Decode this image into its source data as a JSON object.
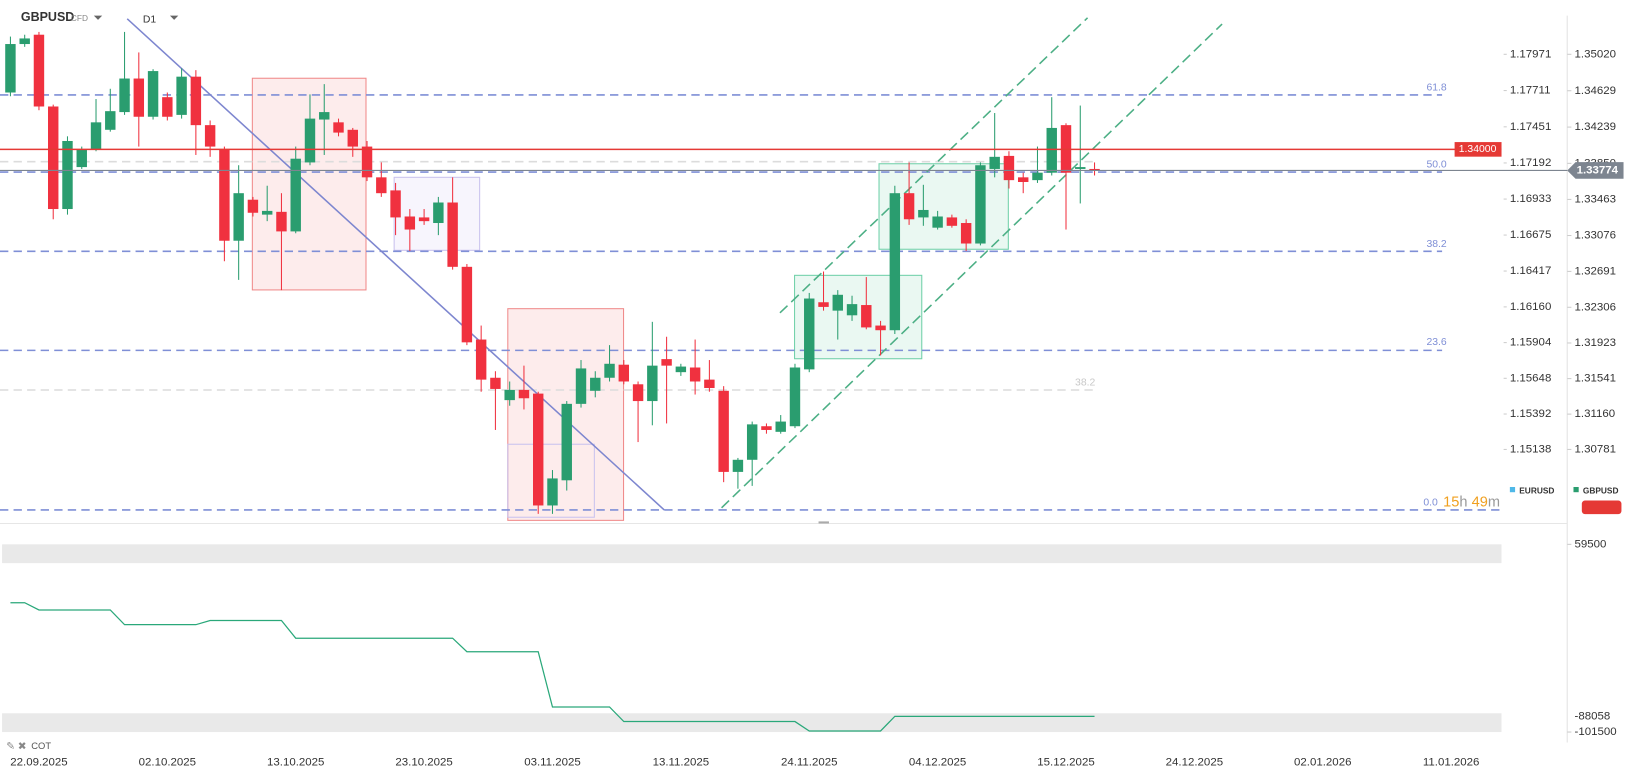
{
  "header": {
    "symbol": "GBPUSD",
    "badge": "CFD",
    "timeframe": "D1"
  },
  "chart_data": {
    "type": "candlestick",
    "categories": [
      null,
      null,
      "22.09.2025",
      null,
      null,
      null,
      null,
      null,
      null,
      null,
      null,
      "02.10.2025",
      null,
      null,
      null,
      null,
      null,
      null,
      null,
      null,
      "13.10.2025",
      null,
      null,
      null,
      null,
      null,
      null,
      null,
      null,
      "23.10.2025",
      null,
      null,
      null,
      null,
      null,
      null,
      null,
      null,
      "03.11.2025",
      null,
      null,
      null,
      null,
      null,
      null,
      null,
      null,
      "13.11.2025",
      null,
      null,
      null,
      null,
      null,
      null,
      null,
      null,
      "24.11.2025",
      null,
      null,
      null,
      null,
      null,
      null,
      null,
      null,
      "04.12.2025",
      null,
      null,
      null,
      null,
      null,
      null,
      null,
      null,
      "15.12.2025",
      null,
      null,
      null,
      null,
      null,
      null,
      null,
      null,
      "24.12.2025",
      null,
      null,
      null,
      null,
      null,
      null,
      null,
      null,
      "02.01.2026",
      null,
      null,
      null,
      null,
      null,
      null,
      null,
      null,
      "11.01.2026"
    ],
    "series": [
      {
        "name": "GBPUSD",
        "up_color": "#2a9d6f",
        "down_color": "#f0313f",
        "open": [
          1.3461,
          1.3513,
          1.3523,
          1.3446,
          1.3336,
          1.3381,
          1.34,
          1.3421,
          1.344,
          1.3476,
          1.3435,
          1.3456,
          1.3437,
          1.3478,
          1.3426,
          1.34,
          1.3302,
          1.3346,
          1.333,
          1.3333,
          1.3312,
          1.3386,
          1.3432,
          1.3429,
          1.3421,
          1.3403,
          1.337,
          1.3356,
          1.3328,
          1.3327,
          1.3321,
          1.3343,
          1.3274,
          1.3196,
          1.3155,
          1.3131,
          1.3142,
          1.3138,
          1.3018,
          1.3045,
          1.3127,
          1.3141,
          1.3155,
          1.3169,
          1.3148,
          1.313,
          1.3175,
          1.3161,
          1.3166,
          1.3153,
          1.3141,
          1.3054,
          1.3067,
          1.3103,
          1.3097,
          1.3103,
          1.3164,
          1.3236,
          1.3227,
          1.3222,
          1.3233,
          1.3211,
          1.3206,
          1.3353,
          1.3327,
          1.3316,
          1.3327,
          1.3321,
          1.3299,
          1.3379,
          1.3393,
          1.337,
          1.3367,
          1.3375,
          1.3426,
          1.3379,
          1.3379,
          null,
          null,
          null,
          null,
          null,
          null,
          null,
          null,
          null,
          null,
          null,
          null,
          null,
          null,
          null,
          null,
          null,
          null,
          null,
          null,
          null,
          null,
          null,
          null,
          null
        ],
        "high": [
          1.3521,
          1.3523,
          1.3526,
          1.3448,
          1.3414,
          1.3403,
          1.3454,
          1.3465,
          1.3526,
          1.3504,
          1.3486,
          1.3461,
          1.3487,
          1.3485,
          1.3431,
          1.3403,
          1.3383,
          1.3349,
          1.3361,
          1.3353,
          1.3403,
          1.3459,
          1.347,
          1.3433,
          1.3423,
          1.3409,
          1.3386,
          1.3364,
          1.3336,
          1.3336,
          1.3349,
          1.337,
          1.3277,
          1.3211,
          1.3162,
          1.3151,
          1.3168,
          1.314,
          1.3056,
          1.313,
          1.3174,
          1.3162,
          1.319,
          1.3174,
          1.3151,
          1.3215,
          1.3199,
          1.317,
          1.3196,
          1.3174,
          1.3146,
          1.3069,
          1.3108,
          1.3106,
          1.3115,
          1.317,
          1.3246,
          1.3269,
          1.3249,
          1.3243,
          1.3263,
          1.3216,
          1.3361,
          1.3386,
          1.3362,
          1.3334,
          1.333,
          1.3325,
          1.3386,
          1.3439,
          1.3398,
          1.3375,
          1.3403,
          1.3456,
          1.3428,
          1.3447,
          1.3386,
          null,
          null,
          null,
          null,
          null,
          null,
          null,
          null,
          null,
          null,
          null,
          null,
          null,
          null,
          null,
          null,
          null,
          null,
          null,
          null,
          null,
          null,
          null,
          null,
          null
        ],
        "low": [
          1.3457,
          1.351,
          1.3442,
          1.3325,
          1.333,
          1.3379,
          1.3398,
          1.3419,
          1.3437,
          1.3403,
          1.3432,
          1.3431,
          1.3433,
          1.3394,
          1.3392,
          1.328,
          1.326,
          1.3328,
          1.3323,
          1.3249,
          1.331,
          1.3383,
          1.3394,
          1.3414,
          1.3392,
          1.3366,
          1.3349,
          1.3308,
          1.3291,
          1.3319,
          1.3308,
          1.3271,
          1.319,
          1.314,
          1.3099,
          1.3125,
          1.3121,
          1.3009,
          1.3009,
          1.3034,
          1.3123,
          1.3134,
          1.3151,
          1.3148,
          1.3086,
          1.3104,
          1.3106,
          1.3157,
          1.3137,
          1.314,
          1.3043,
          1.3036,
          1.3039,
          1.3095,
          1.3095,
          1.3101,
          1.3161,
          1.3227,
          1.3196,
          1.3216,
          1.3207,
          1.3179,
          1.3202,
          1.3319,
          1.3318,
          1.3314,
          1.3316,
          1.3291,
          1.3297,
          1.337,
          1.3358,
          1.3353,
          1.3364,
          1.3372,
          1.3314,
          1.3342,
          1.3372,
          null,
          null,
          null,
          null,
          null,
          null,
          null,
          null,
          null,
          null,
          null,
          null,
          null,
          null,
          null,
          null,
          null,
          null,
          null,
          null,
          null,
          null,
          null,
          null,
          null
        ],
        "close": [
          1.3513,
          1.3519,
          1.3446,
          1.3336,
          1.3409,
          1.34,
          1.3429,
          1.3441,
          1.3476,
          1.3435,
          1.3484,
          1.3435,
          1.3478,
          1.3426,
          1.3403,
          1.3302,
          1.3353,
          1.3332,
          1.3334,
          1.3312,
          1.339,
          1.3433,
          1.344,
          1.3418,
          1.3403,
          1.337,
          1.3353,
          1.3327,
          1.3314,
          1.3323,
          1.3343,
          1.3274,
          1.3193,
          1.3153,
          1.3143,
          1.3142,
          1.3133,
          1.3018,
          1.3047,
          1.3127,
          1.3165,
          1.3155,
          1.317,
          1.3151,
          1.313,
          1.3168,
          1.3168,
          1.3167,
          1.3151,
          1.3144,
          1.3054,
          1.3067,
          1.3105,
          1.3099,
          1.3108,
          1.3166,
          1.324,
          1.3231,
          1.3244,
          1.3234,
          1.3209,
          1.3206,
          1.3353,
          1.3325,
          1.3335,
          1.3328,
          1.3318,
          1.3299,
          1.3383,
          1.3392,
          1.3367,
          1.3365,
          1.3375,
          1.3423,
          1.3375,
          1.3381,
          1.3377,
          null,
          null,
          null,
          null,
          null,
          null,
          null,
          null,
          null,
          null,
          null,
          null,
          null,
          null,
          null,
          null,
          null,
          null,
          null,
          null,
          null,
          null,
          null,
          null,
          null
        ]
      }
    ],
    "ylim": [
      1.30009,
      1.35602
    ],
    "yticks": [
      {
        "value": 1.3502,
        "label": "1.35020"
      },
      1.34629,
      1.34239,
      {
        "value": 1.3385,
        "label": "1.33850"
      },
      1.33463,
      1.33076,
      1.32691,
      1.32306,
      1.31923,
      1.31541,
      {
        "value": 1.3116,
        "label": "1.31160"
      },
      1.30781
    ],
    "y2lim": [
      1.14622,
      1.1836
    ],
    "y2ticks": [
      1.17971,
      1.17711,
      1.17451,
      1.17192,
      1.16933,
      1.16675,
      1.16417,
      {
        "value": 1.1616,
        "label": "1.16160"
      },
      1.15904,
      1.15648,
      1.15392,
      1.15138
    ],
    "legend": [
      {
        "name": "EURUSD",
        "color": "#4fb8e8"
      },
      {
        "name": "GBPUSD",
        "color": "#2a9d6f"
      }
    ],
    "price_lines": [
      {
        "value": 1.34,
        "label": "1.34000",
        "color": "#e53935"
      },
      {
        "value": 1.33774,
        "label": "1.33774",
        "color": "#7d8590"
      }
    ],
    "fib_labels": [
      "61.8",
      "50.0",
      "38.2",
      "23.6",
      "0.0",
      "38.2"
    ],
    "countdown": [
      "15",
      "h",
      "49",
      "m"
    ]
  },
  "indicator": {
    "type": "line",
    "name": "COT",
    "color": "#2aa87a",
    "values": [
      9400,
      9400,
      3200,
      3200,
      3200,
      3200,
      3200,
      3200,
      -9400,
      -9400,
      -9400,
      -9400,
      -9400,
      -9400,
      -5800,
      -5800,
      -5800,
      -5800,
      -5800,
      -5800,
      -21000,
      -21000,
      -21000,
      -21000,
      -21000,
      -21000,
      -21000,
      -21000,
      -21000,
      -21000,
      -21000,
      -21000,
      -32600,
      -32600,
      -32600,
      -32600,
      -32600,
      -32600,
      -80000,
      -80000,
      -80000,
      -80000,
      -80000,
      -92500,
      -92500,
      -92500,
      -92500,
      -92500,
      -92500,
      -92500,
      -92500,
      -92500,
      -92500,
      -92500,
      -92500,
      -92500,
      -100600,
      -100600,
      -100600,
      -100600,
      -100600,
      -100600,
      -88058,
      -88058,
      -88058,
      -88058,
      -88058,
      -88058,
      -88058,
      -88058,
      -88058,
      -88058,
      -88058,
      -88058,
      -88058,
      -88058,
      -88058,
      null,
      null,
      null,
      null,
      null,
      null,
      null,
      null,
      null,
      null,
      null,
      null,
      null,
      null,
      null,
      null,
      null,
      null,
      null,
      null,
      null,
      null,
      null,
      null,
      null
    ],
    "ylim": [
      -101500,
      59500
    ],
    "yticks": [
      59500,
      -101500
    ]
  }
}
